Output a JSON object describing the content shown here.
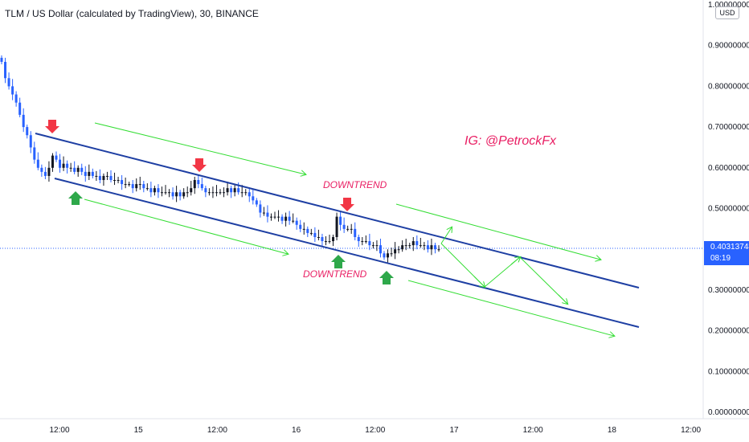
{
  "header": {
    "title": "TLM / US Dollar (calculated by TradingView), 30, BINANCE"
  },
  "price_axis": {
    "currency": "USD",
    "current_price": "0.40313748",
    "countdown": "08:19"
  },
  "annotations": {
    "watermark": "IG: @PetrockFx",
    "downtrend_top": "DOWNTREND",
    "downtrend_bottom": "DOWNTREND"
  },
  "colors": {
    "channel": "#1e3fa3",
    "projection": "#33dd33",
    "arrow_down": "#f23645",
    "arrow_up": "#2ea84a",
    "text_accent": "#e91e63",
    "candle_up": "#131722",
    "candle_down": "#2962ff",
    "price_label": "#2962ff"
  },
  "chart_data": {
    "type": "candlestick",
    "title": "TLM / US Dollar (calculated by TradingView), 30, BINANCE",
    "y_ticks": [
      "1.00000000",
      "0.90000000",
      "0.80000000",
      "0.70000000",
      "0.60000000",
      "0.50000000",
      "0.30000000",
      "0.20000000",
      "0.10000000",
      "0.00000000"
    ],
    "x_ticks": [
      "12:00",
      "15",
      "12:00",
      "16",
      "12:00",
      "17",
      "12:00",
      "18",
      "12:00"
    ],
    "ylim": [
      0,
      1.0
    ],
    "current_price": 0.40313748,
    "close_series": [
      0.86,
      0.82,
      0.8,
      0.78,
      0.76,
      0.73,
      0.7,
      0.68,
      0.65,
      0.62,
      0.6,
      0.59,
      0.58,
      0.6,
      0.63,
      0.62,
      0.6,
      0.61,
      0.6,
      0.6,
      0.59,
      0.6,
      0.59,
      0.58,
      0.59,
      0.58,
      0.58,
      0.57,
      0.58,
      0.58,
      0.57,
      0.57,
      0.57,
      0.56,
      0.56,
      0.56,
      0.55,
      0.56,
      0.56,
      0.55,
      0.55,
      0.54,
      0.55,
      0.54,
      0.54,
      0.54,
      0.54,
      0.53,
      0.54,
      0.53,
      0.54,
      0.54,
      0.55,
      0.57,
      0.56,
      0.55,
      0.54,
      0.54,
      0.54,
      0.54,
      0.54,
      0.54,
      0.55,
      0.54,
      0.55,
      0.54,
      0.54,
      0.54,
      0.53,
      0.52,
      0.51,
      0.49,
      0.49,
      0.48,
      0.48,
      0.48,
      0.48,
      0.47,
      0.48,
      0.47,
      0.47,
      0.46,
      0.45,
      0.45,
      0.44,
      0.44,
      0.43,
      0.43,
      0.42,
      0.42,
      0.42,
      0.43,
      0.48,
      0.46,
      0.45,
      0.45,
      0.45,
      0.43,
      0.42,
      0.42,
      0.42,
      0.41,
      0.41,
      0.41,
      0.39,
      0.38,
      0.39,
      0.39,
      0.4,
      0.4,
      0.41,
      0.41,
      0.41,
      0.42,
      0.41,
      0.41,
      0.41,
      0.4,
      0.41,
      0.4,
      0.4
    ],
    "channel": {
      "upper": {
        "start": {
          "x": "13 Nov 08:00",
          "y": 0.68
        },
        "end": {
          "x": "18 Nov 18:00",
          "y": 0.3
        }
      },
      "lower": {
        "start": {
          "x": "13 Nov 10:00",
          "y": 0.57
        },
        "end": {
          "x": "18 Nov 18:00",
          "y": 0.2
        }
      }
    },
    "projection_path": [
      {
        "x": "16 Nov 20:00",
        "y": 0.42
      },
      {
        "x": "17 Nov 06:00",
        "y": 0.31
      },
      {
        "x": "17 Nov 14:00",
        "y": 0.37
      },
      {
        "x": "17 Nov 22:00",
        "y": 0.26
      }
    ]
  }
}
